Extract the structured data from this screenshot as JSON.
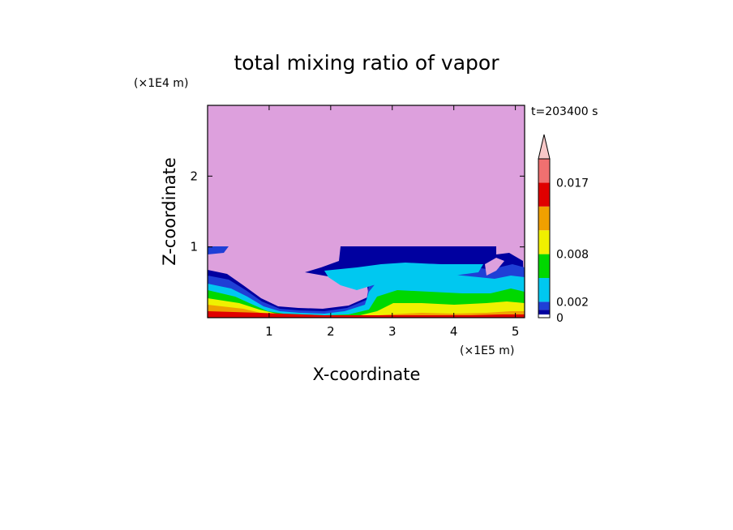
{
  "chart_data": {
    "type": "heatmap",
    "title": "total mixing ratio of vapor",
    "xlabel": "X-coordinate",
    "ylabel": "Z-coordinate",
    "x_unit": "(×1E5 m)",
    "y_unit": "(×1E4 m)",
    "time_label": "t=203400 s",
    "xlim": [
      0,
      5.15
    ],
    "ylim": [
      0,
      3.0
    ],
    "x_ticks": [
      "1",
      "2",
      "3",
      "4",
      "5"
    ],
    "y_ticks": [
      "1",
      "2"
    ],
    "colorbar": {
      "levels": [
        0,
        0.001,
        0.002,
        0.005,
        0.008,
        0.011,
        0.014,
        0.017,
        0.02
      ],
      "labels": [
        "0",
        "0.002",
        "0.008",
        "0.017"
      ],
      "extend": "max",
      "colors": [
        "#ffffff",
        "#0000a0",
        "#1f3fd6",
        "#00c8f0",
        "#00d800",
        "#f0f000",
        "#f0a000",
        "#e00000",
        "#f07070",
        "#f8c8c8"
      ]
    },
    "background_color": "#dda0dd",
    "layers": [
      {
        "level": "0.001-0.002",
        "color": "#0000a0"
      },
      {
        "level": "0.002-0.005",
        "color": "#1f3fd6"
      },
      {
        "level": "0.005-0.008",
        "color": "#00c8f0"
      },
      {
        "level": "0.008-0.011",
        "color": "#00d800"
      },
      {
        "level": "0.011-0.014",
        "color": "#f0f000"
      },
      {
        "level": "0.014-0.017",
        "color": "#f0a000"
      },
      {
        "level": "0.017-0.02",
        "color": "#e00000"
      }
    ]
  }
}
